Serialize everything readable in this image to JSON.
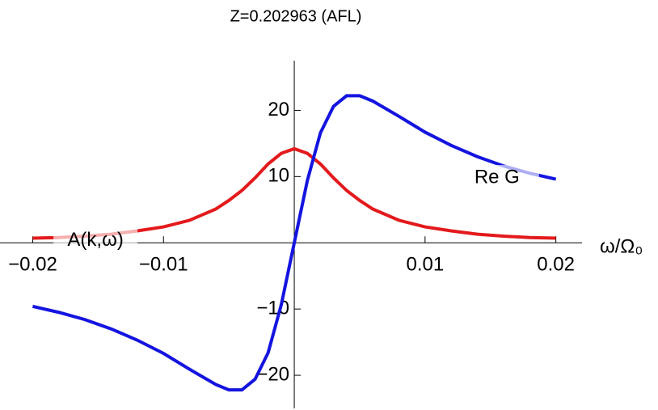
{
  "chart_data": {
    "type": "line",
    "title": "Z=0.202963  (AFL)",
    "x_label": "ω/Ω₀",
    "x": [
      -0.02,
      -0.018,
      -0.016,
      -0.014,
      -0.012,
      -0.01,
      -0.008,
      -0.006,
      -0.005,
      -0.004,
      -0.003,
      -0.002,
      -0.001,
      0,
      0.001,
      0.002,
      0.003,
      0.004,
      0.005,
      0.006,
      0.008,
      0.01,
      0.012,
      0.014,
      0.016,
      0.018,
      0.02
    ],
    "series": [
      {
        "name": "A(k,ω)",
        "color": "#e31a1c",
        "values": [
          0.7,
          0.8,
          1.0,
          1.3,
          1.8,
          2.4,
          3.4,
          5.1,
          6.4,
          7.9,
          9.8,
          11.9,
          13.5,
          14.2,
          13.5,
          11.9,
          9.8,
          7.9,
          6.4,
          5.1,
          3.4,
          2.4,
          1.8,
          1.3,
          1.0,
          0.8,
          0.7
        ]
      },
      {
        "name": "Re G",
        "color": "#1414e0",
        "values": [
          -9.6,
          -10.5,
          -11.6,
          -13.0,
          -14.7,
          -16.7,
          -19.1,
          -21.4,
          -22.2,
          -22.2,
          -20.6,
          -16.6,
          -9.4,
          0,
          9.4,
          16.6,
          20.6,
          22.2,
          22.2,
          21.4,
          19.1,
          16.7,
          14.7,
          13.0,
          11.6,
          10.5,
          9.6
        ]
      }
    ],
    "xlim": [
      -0.0225,
      0.022
    ],
    "ylim": [
      -25,
      27.5
    ],
    "xticks": [
      {
        "value": -0.02,
        "label": "−0.02"
      },
      {
        "value": -0.01,
        "label": "−0.01"
      },
      0.01,
      0.02
    ],
    "yticks": [
      {
        "value": -20,
        "label": "−20"
      },
      {
        "value": -10,
        "label": "−10"
      },
      10,
      20
    ]
  }
}
